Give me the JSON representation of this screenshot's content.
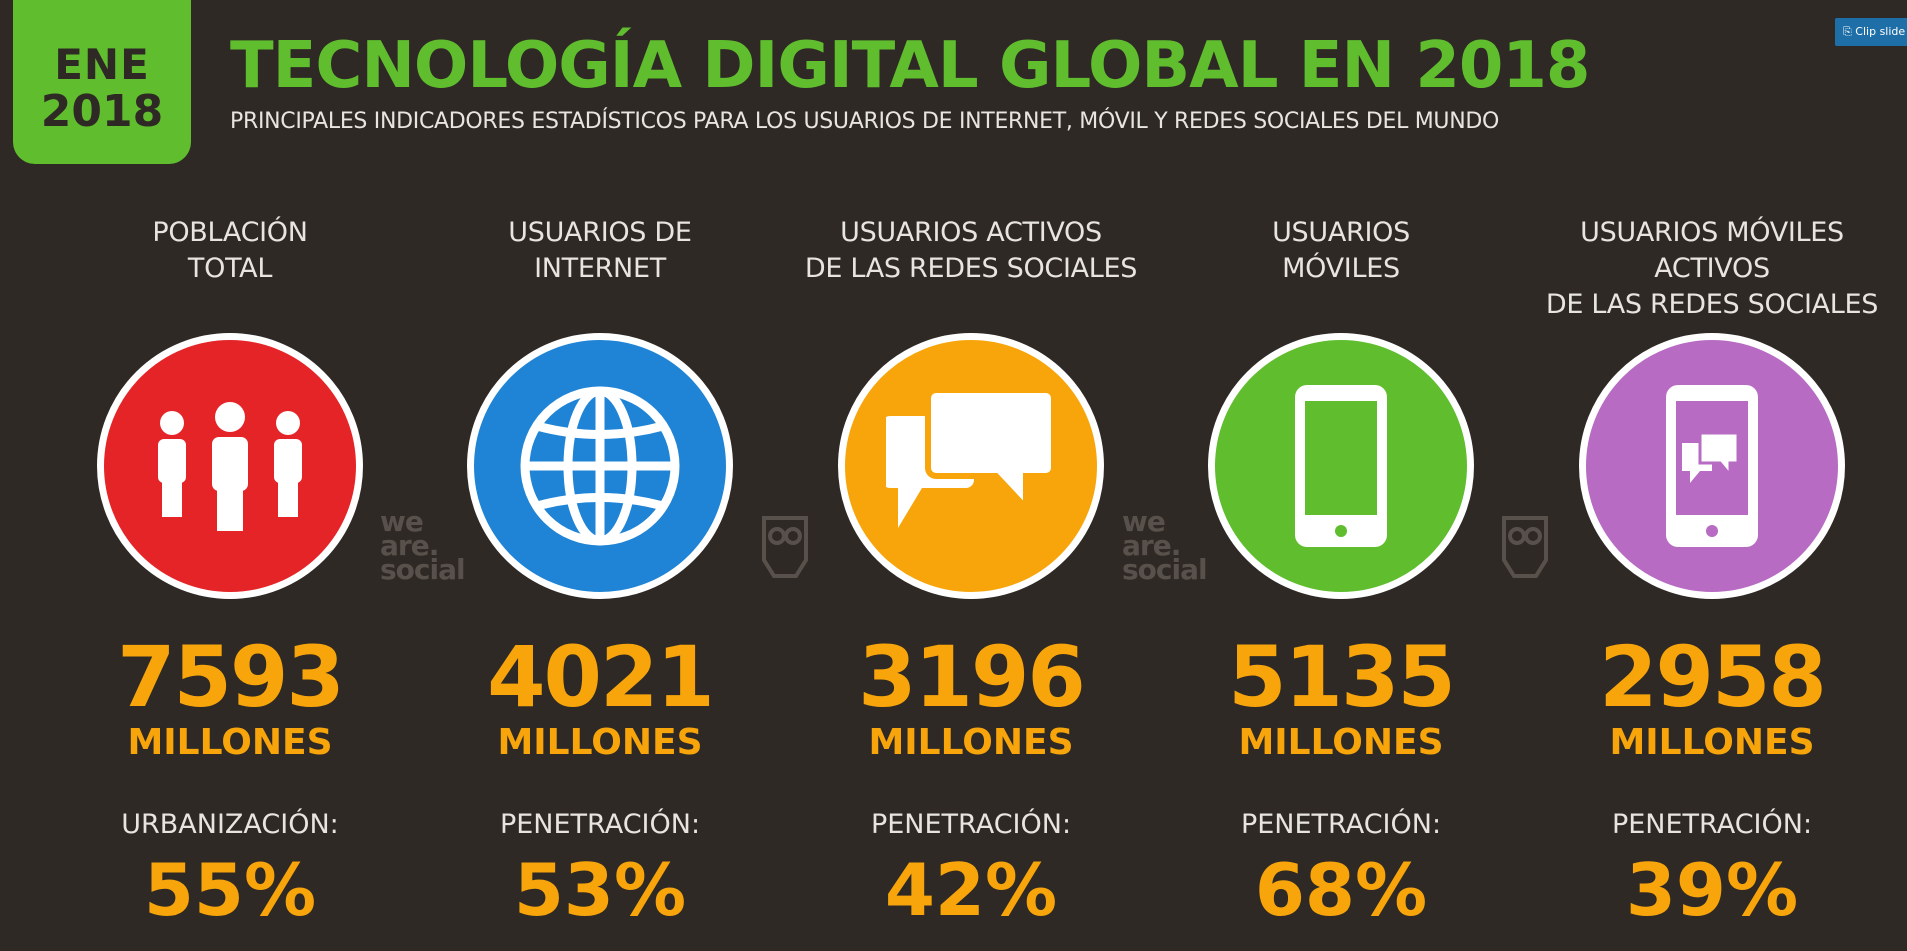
{
  "badge": {
    "month": "ENE",
    "year": "2018"
  },
  "title": "TECNOLOGÍA DIGITAL GLOBAL EN 2018",
  "subtitle": "PRINCIPALES INDICADORES ESTADÍSTICOS PARA LOS USUARIOS DE INTERNET, MÓVIL Y REDES SOCIALES DEL MUNDO",
  "clip_button": "Clip slide",
  "watermark": {
    "we": "we",
    "are": "are.",
    "social": "social"
  },
  "colors": {
    "green": "#5fbd2e",
    "orange": "#f7a50b",
    "red": "#e52427",
    "blue": "#1f84d6",
    "purple": "#b76bc3",
    "bg": "#2f2925"
  },
  "columns": [
    {
      "label": "POBLACIÓN\nTOTAL",
      "icon": "people-icon",
      "color": "#e52427",
      "value": "7593",
      "unit": "MILLONES",
      "stat_label": "URBANIZACIÓN:",
      "stat_value": "55%"
    },
    {
      "label": "USUARIOS DE\nINTERNET",
      "icon": "globe-icon",
      "color": "#1f84d6",
      "value": "4021",
      "unit": "MILLONES",
      "stat_label": "PENETRACIÓN:",
      "stat_value": "53%"
    },
    {
      "label": "USUARIOS ACTIVOS\nDE LAS REDES SOCIALES",
      "icon": "chat-bubbles-icon",
      "color": "#f7a50b",
      "value": "3196",
      "unit": "MILLONES",
      "stat_label": "PENETRACIÓN:",
      "stat_value": "42%"
    },
    {
      "label": "USUARIOS\nMÓVILES",
      "icon": "mobile-phone-icon",
      "color": "#5fbd2e",
      "value": "5135",
      "unit": "MILLONES",
      "stat_label": "PENETRACIÓN:",
      "stat_value": "68%"
    },
    {
      "label": "USUARIOS MÓVILES ACTIVOS\nDE LAS REDES SOCIALES",
      "icon": "mobile-chat-icon",
      "color": "#b76bc3",
      "value": "2958",
      "unit": "MILLONES",
      "stat_label": "PENETRACIÓN:",
      "stat_value": "39%"
    }
  ]
}
